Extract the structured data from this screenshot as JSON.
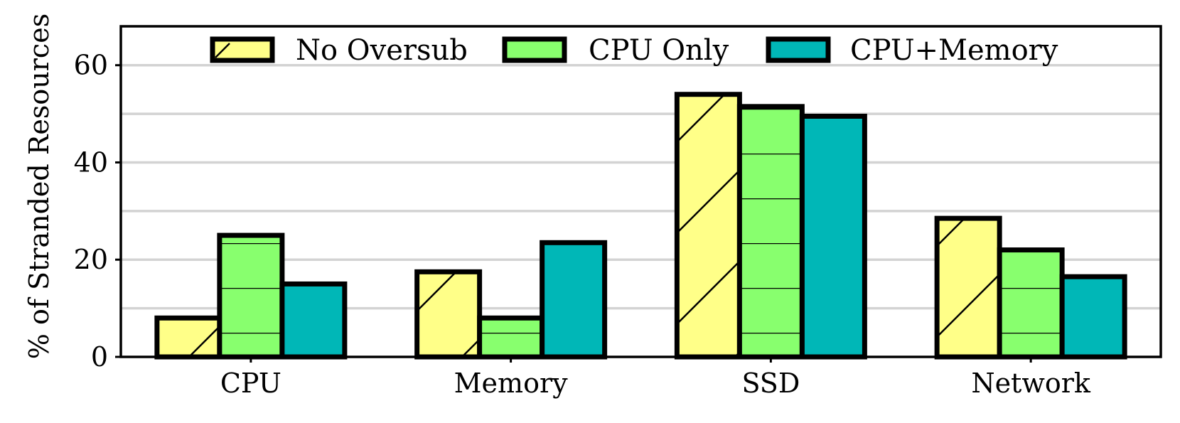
{
  "chart_data": {
    "type": "bar",
    "title": "",
    "xlabel": "",
    "ylabel": "% of Stranded Resources",
    "ylim": [
      0,
      68
    ],
    "yticks": [
      0,
      20,
      40,
      60
    ],
    "grid": true,
    "legend_position": "top",
    "categories": [
      "CPU",
      "Memory",
      "SSD",
      "Network"
    ],
    "series": [
      {
        "name": "No Oversub",
        "values": [
          8,
          17.5,
          54,
          28.5
        ],
        "color": "#ffff88",
        "hatch": "diagonal"
      },
      {
        "name": "CPU Only",
        "values": [
          25,
          8,
          51.5,
          22
        ],
        "color": "#88ff6e",
        "hatch": "horizontal"
      },
      {
        "name": "CPU+Memory",
        "values": [
          15,
          23.5,
          49.5,
          16.5
        ],
        "color": "#00b7b7",
        "hatch": "none"
      }
    ]
  }
}
